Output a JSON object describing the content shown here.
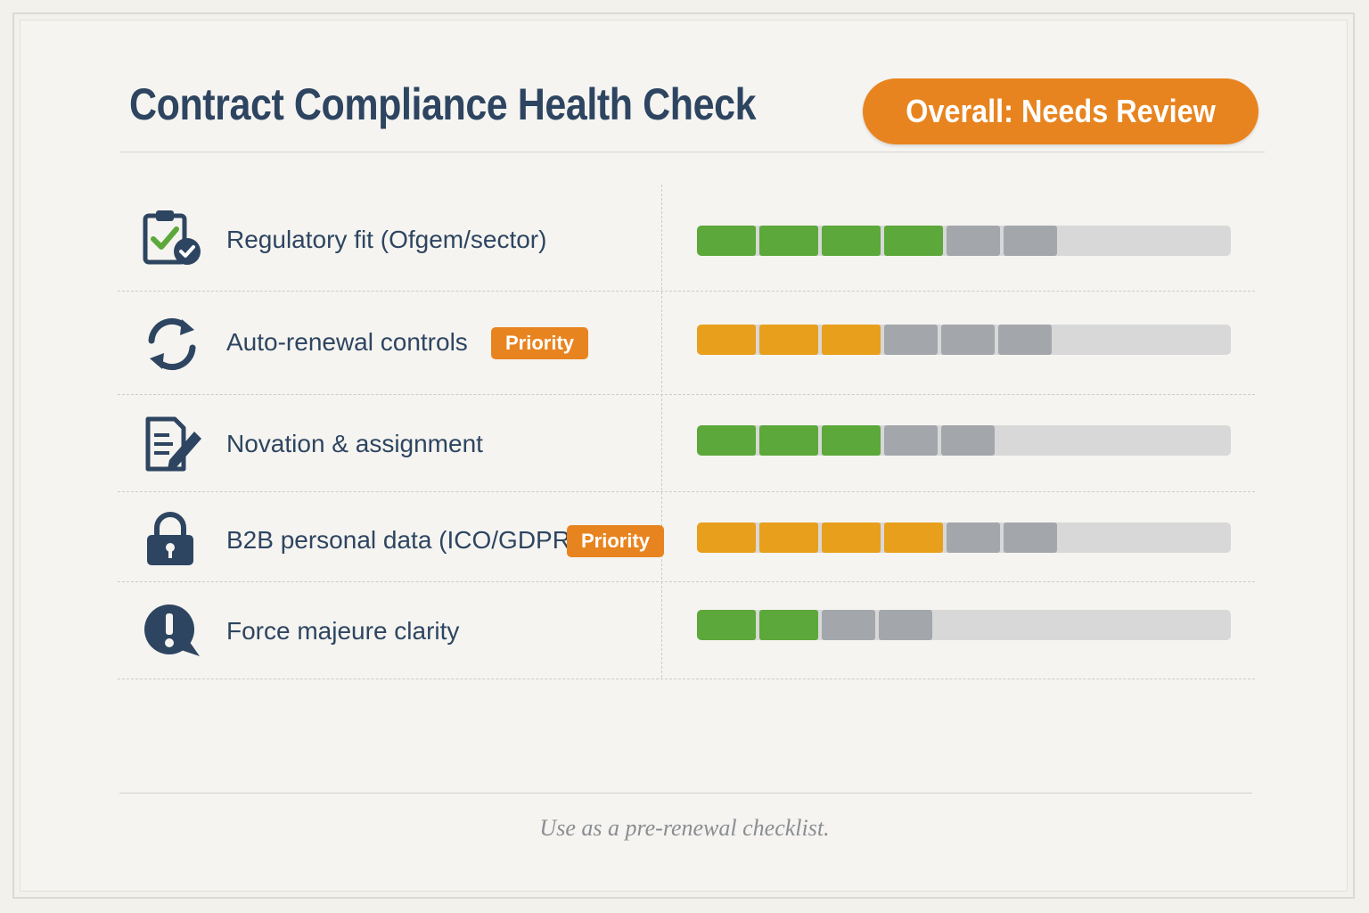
{
  "header": {
    "title": "Contract Compliance Health Check",
    "overall_badge": "Overall: Needs Review"
  },
  "colors": {
    "navy": "#2e4561",
    "green": "#5ca83a",
    "amber": "#e89f1c",
    "orange": "#e8841f",
    "grey": "#a3a7ac",
    "track": "#d8d8d8"
  },
  "rows": [
    {
      "label": "Regulatory fit (Ofgem/sector)",
      "icon": "clipboard-check-icon",
      "priority": "",
      "score_color": "green",
      "filled_segments": 4,
      "grey_segments": 2
    },
    {
      "label": "Auto-renewal controls",
      "icon": "refresh-icon",
      "priority": "Priority",
      "score_color": "amber",
      "filled_segments": 3,
      "grey_segments": 3
    },
    {
      "label": "Novation & assignment",
      "icon": "document-edit-icon",
      "priority": "",
      "score_color": "green",
      "filled_segments": 3,
      "grey_segments": 2
    },
    {
      "label": "B2B personal data (ICO/GDPR)",
      "icon": "lock-icon",
      "priority": "Priority",
      "score_color": "amber",
      "filled_segments": 4,
      "grey_segments": 2
    },
    {
      "label": "Force majeure clarity",
      "icon": "alert-speech-icon",
      "priority": "",
      "score_color": "green",
      "filled_segments": 2,
      "grey_segments": 2
    }
  ],
  "footer": {
    "note": "Use as a pre-renewal checklist."
  }
}
